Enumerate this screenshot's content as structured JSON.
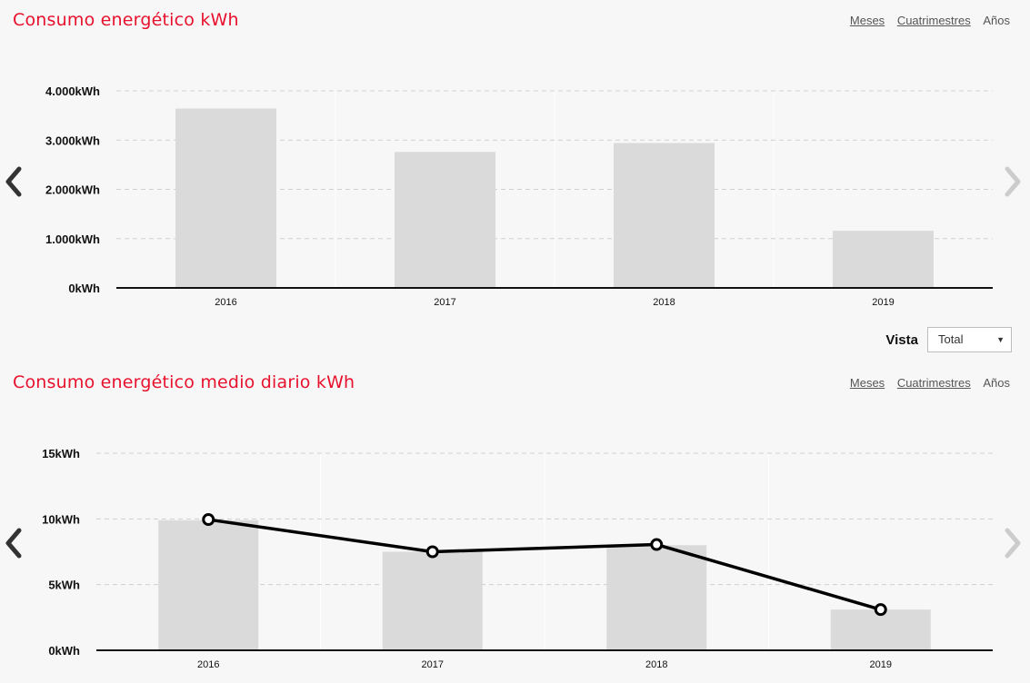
{
  "chart_data": [
    {
      "type": "bar",
      "title": "Consumo energético kWh",
      "categories": [
        "2016",
        "2017",
        "2018",
        "2019"
      ],
      "series": [
        {
          "values": [
            3640,
            2760,
            2940,
            1160
          ]
        }
      ],
      "ylim": [
        0,
        4000
      ],
      "yticks": [
        0,
        1000,
        2000,
        3000,
        4000
      ],
      "ytick_labels": [
        "0kWh",
        "1.000kWh",
        "2.000kWh",
        "3.000kWh",
        "4.000kWh"
      ],
      "grid": true
    },
    {
      "type": "bar",
      "title": "Consumo energético medio diario kWh",
      "categories": [
        "2016",
        "2017",
        "2018",
        "2019"
      ],
      "series": [
        {
          "type": "bar",
          "values": [
            9.9,
            7.5,
            8.0,
            3.1
          ]
        },
        {
          "type": "line",
          "values": [
            9.95,
            7.5,
            8.05,
            3.1
          ]
        }
      ],
      "ylim": [
        0,
        15
      ],
      "yticks": [
        0,
        5,
        10,
        15
      ],
      "ytick_labels": [
        "0kWh",
        "5kWh",
        "10kWh",
        "15kWh"
      ],
      "grid": true
    }
  ],
  "nav": {
    "months": "Meses",
    "four_months": "Cuatrimestres",
    "years": "Años"
  },
  "vista": {
    "label": "Vista",
    "selected": "Total"
  },
  "icons": {
    "prev": "chevron-left-icon",
    "next": "chevron-right-icon",
    "dropdown": "caret-down-icon"
  },
  "colors": {
    "title": "#e8112d",
    "bar": "#dadada",
    "line": "#000000",
    "arrow_active": "#333333",
    "arrow_disabled": "#cccccc"
  }
}
